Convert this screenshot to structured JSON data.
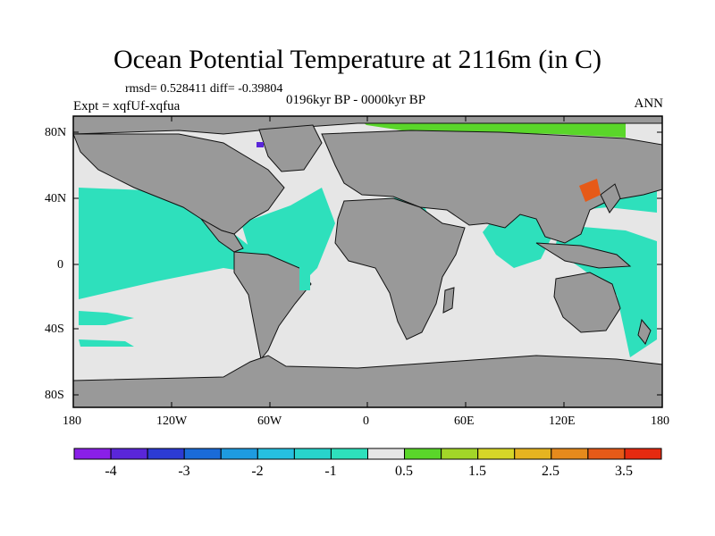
{
  "title": "Ocean Potential Temperature at 2116m (in C)",
  "stats": "rmsd= 0.528411 diff= -0.39804",
  "experiment": "Expt = xqfUf-xqfua",
  "period": "0196kyr BP - 0000kyr BP",
  "season": "ANN",
  "lat_labels": [
    "80N",
    "40N",
    "0",
    "40S",
    "80S"
  ],
  "lon_labels": [
    "180",
    "120W",
    "60W",
    "0",
    "60E",
    "120E",
    "180"
  ],
  "colorbar": {
    "labels": [
      "-4",
      "-3",
      "-2",
      "-1",
      "0.5",
      "1.5",
      "2.5",
      "3.5"
    ],
    "colors": [
      "#8a1fe8",
      "#5a26d9",
      "#2c3bd4",
      "#1a6bd8",
      "#1e9be0",
      "#26c0e0",
      "#28d4cc",
      "#2ee0bc",
      "#e6e6e6",
      "#5ad62a",
      "#a2d628",
      "#d6d628",
      "#e6b420",
      "#e68a1c",
      "#e65a18",
      "#e62a10"
    ]
  },
  "colors": {
    "land": "#999999",
    "neutral_ocean": "#e6e6e6",
    "negative_anomaly": "#2ee0bc",
    "positive_anomaly": "#5ad62a",
    "strong_positive": "#e65a18",
    "strong_negative": "#5a26d9"
  }
}
